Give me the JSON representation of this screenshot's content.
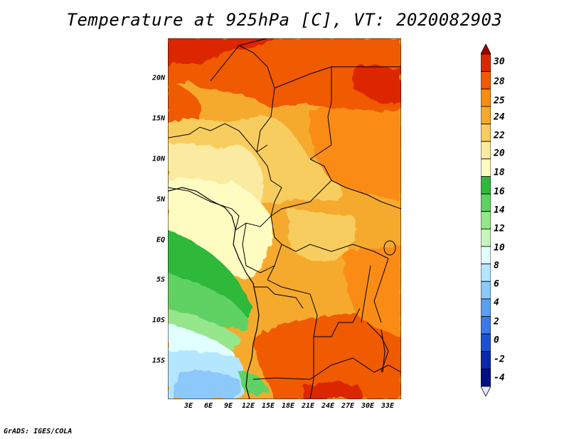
{
  "title": "Temperature at 925hPa [C], VT: 2020082903",
  "credit": "GrADS: IGES/COLA",
  "map": {
    "y_ticks": [
      "20N",
      "15N",
      "10N",
      "5N",
      "EQ",
      "5S",
      "10S",
      "15S"
    ],
    "x_ticks": [
      "3E",
      "6E",
      "9E",
      "12E",
      "15E",
      "18E",
      "21E",
      "24E",
      "27E",
      "30E",
      "33E"
    ]
  },
  "colorbar": {
    "labels": [
      "30",
      "28",
      "25",
      "24",
      "22",
      "20",
      "18",
      "16",
      "14",
      "12",
      "10",
      "8",
      "6",
      "4",
      "2",
      "0",
      "-2",
      "-4"
    ],
    "colors": [
      "#a50000",
      "#dc2800",
      "#f05a00",
      "#fa8c14",
      "#f5aa2d",
      "#f8cd5f",
      "#fbeaa1",
      "#fffcc2",
      "#2eb93b",
      "#5fd264",
      "#96e68c",
      "#c8f5bc",
      "#e0fffe",
      "#b4e6ff",
      "#8cc8fa",
      "#5aa0f0",
      "#3c78e6",
      "#1e50d2",
      "#0a28aa",
      "#000f82",
      "#e6e6ff"
    ]
  },
  "chart_data": {
    "type": "heatmap",
    "title": "Temperature at 925hPa [C], VT: 2020082903",
    "variable": "Temperature at 925hPa",
    "units": "C",
    "valid_time": "2020082903",
    "lat_ticks": [
      "20N",
      "15N",
      "10N",
      "5N",
      "EQ",
      "5S",
      "10S",
      "15S"
    ],
    "lon_ticks": [
      "3E",
      "6E",
      "9E",
      "12E",
      "15E",
      "18E",
      "21E",
      "24E",
      "27E",
      "30E",
      "33E"
    ],
    "lat_range": [
      -19.5,
      25
    ],
    "lon_range": [
      0.5,
      34.5
    ],
    "color_levels": [
      -4,
      -2,
      0,
      2,
      4,
      6,
      8,
      10,
      12,
      14,
      16,
      18,
      20,
      22,
      24,
      25,
      28,
      30
    ]
  }
}
